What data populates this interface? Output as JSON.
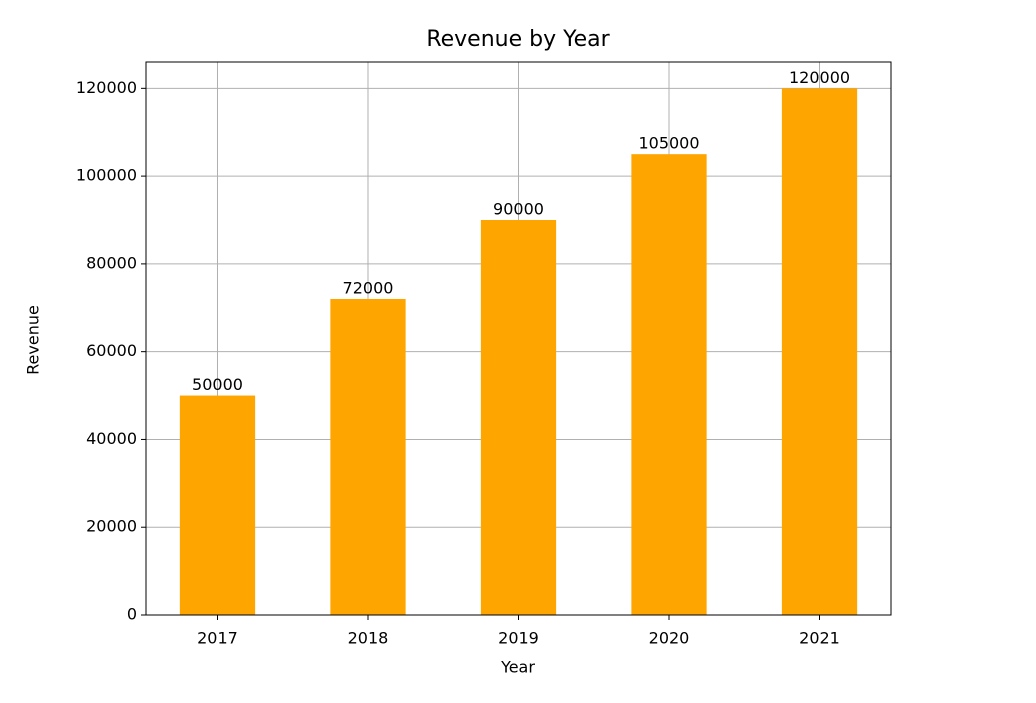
{
  "chart_data": {
    "type": "bar",
    "title": "Revenue by Year",
    "x_label": "Year",
    "y_label": "Revenue",
    "categories": [
      "2017",
      "2018",
      "2019",
      "2020",
      "2021"
    ],
    "values": [
      50000,
      72000,
      90000,
      105000,
      120000
    ],
    "color": "#ffa500",
    "ylim": [
      0,
      126000
    ],
    "yticks": [
      0,
      20000,
      40000,
      60000,
      80000,
      100000,
      120000
    ],
    "grid": true
  }
}
